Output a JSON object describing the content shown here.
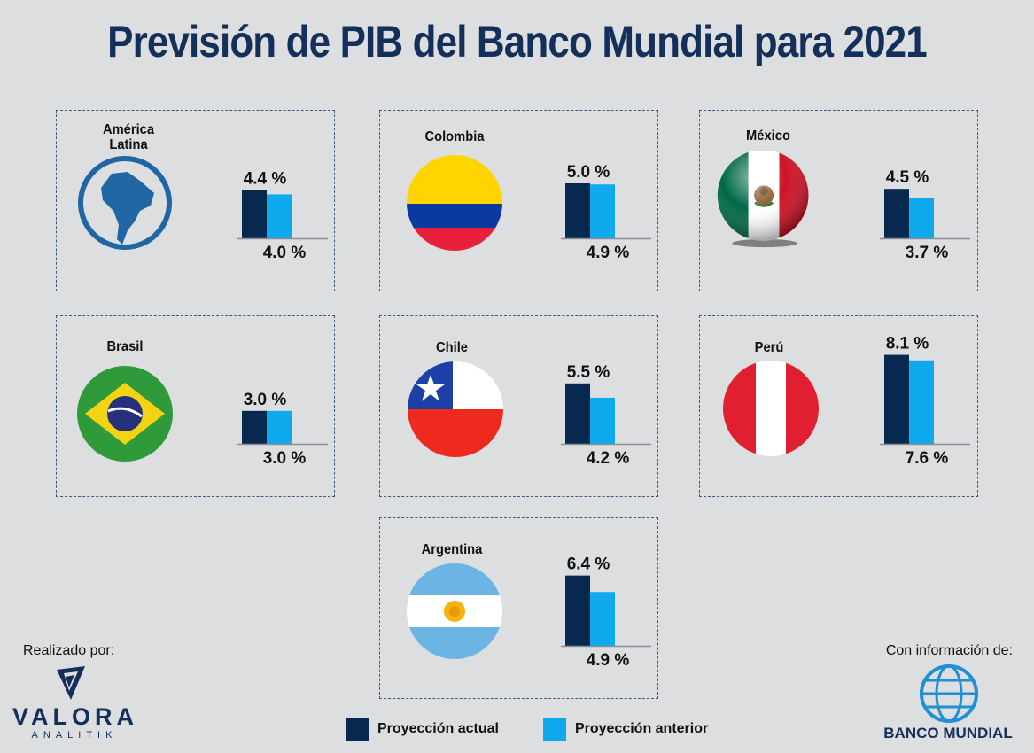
{
  "title": "Previsión de PIB del Banco Mundial para 2021",
  "colors": {
    "actual": "#07284f",
    "anterior": "#0eaaed",
    "title": "#14305a"
  },
  "legend": {
    "actual": "Proyección actual",
    "anterior": "Proyección anterior"
  },
  "footer": {
    "made_by": "Realizado por:",
    "valora_name": "VALORA",
    "valora_sub": "ANALITIK",
    "source_label": "Con información de:",
    "source_name": "BANCO MUNDIAL"
  },
  "chart_data": {
    "type": "bar",
    "title": "Previsión de PIB del Banco Mundial para 2021",
    "series": [
      {
        "name": "Proyección actual",
        "values": [
          4.4,
          5.0,
          4.5,
          3.0,
          5.5,
          8.1,
          6.4
        ]
      },
      {
        "name": "Proyección anterior",
        "values": [
          4.0,
          4.9,
          3.7,
          3.0,
          4.2,
          7.6,
          4.9
        ]
      }
    ],
    "categories": [
      "América Latina",
      "Colombia",
      "México",
      "Brasil",
      "Chile",
      "Perú",
      "Argentina"
    ],
    "panels": [
      {
        "name_lines": [
          "América",
          "Latina"
        ],
        "flag": "south-america-globe-icon",
        "actual": 4.4,
        "anterior": 4.0,
        "actual_label": "4.4 %",
        "anterior_label": "4.0 %"
      },
      {
        "name_lines": [
          "Colombia"
        ],
        "flag": "colombia-flag-icon",
        "actual": 5.0,
        "anterior": 4.9,
        "actual_label": "5.0 %",
        "anterior_label": "4.9 %"
      },
      {
        "name_lines": [
          "México"
        ],
        "flag": "mexico-flag-icon",
        "actual": 4.5,
        "anterior": 3.7,
        "actual_label": "4.5 %",
        "anterior_label": "3.7 %"
      },
      {
        "name_lines": [
          "Brasil"
        ],
        "flag": "brazil-flag-icon",
        "actual": 3.0,
        "anterior": 3.0,
        "actual_label": "3.0 %",
        "anterior_label": "3.0 %"
      },
      {
        "name_lines": [
          "Chile"
        ],
        "flag": "chile-flag-icon",
        "actual": 5.5,
        "anterior": 4.2,
        "actual_label": "5.5 %",
        "anterior_label": "4.2 %"
      },
      {
        "name_lines": [
          "Perú"
        ],
        "flag": "peru-flag-icon",
        "actual": 8.1,
        "anterior": 7.6,
        "actual_label": "8.1 %",
        "anterior_label": "7.6 %"
      },
      {
        "name_lines": [
          "Argentina"
        ],
        "flag": "argentina-flag-icon",
        "actual": 6.4,
        "anterior": 4.9,
        "actual_label": "6.4 %",
        "anterior_label": "4.9 %"
      }
    ],
    "legend_position": "bottom-center",
    "grid": false
  }
}
